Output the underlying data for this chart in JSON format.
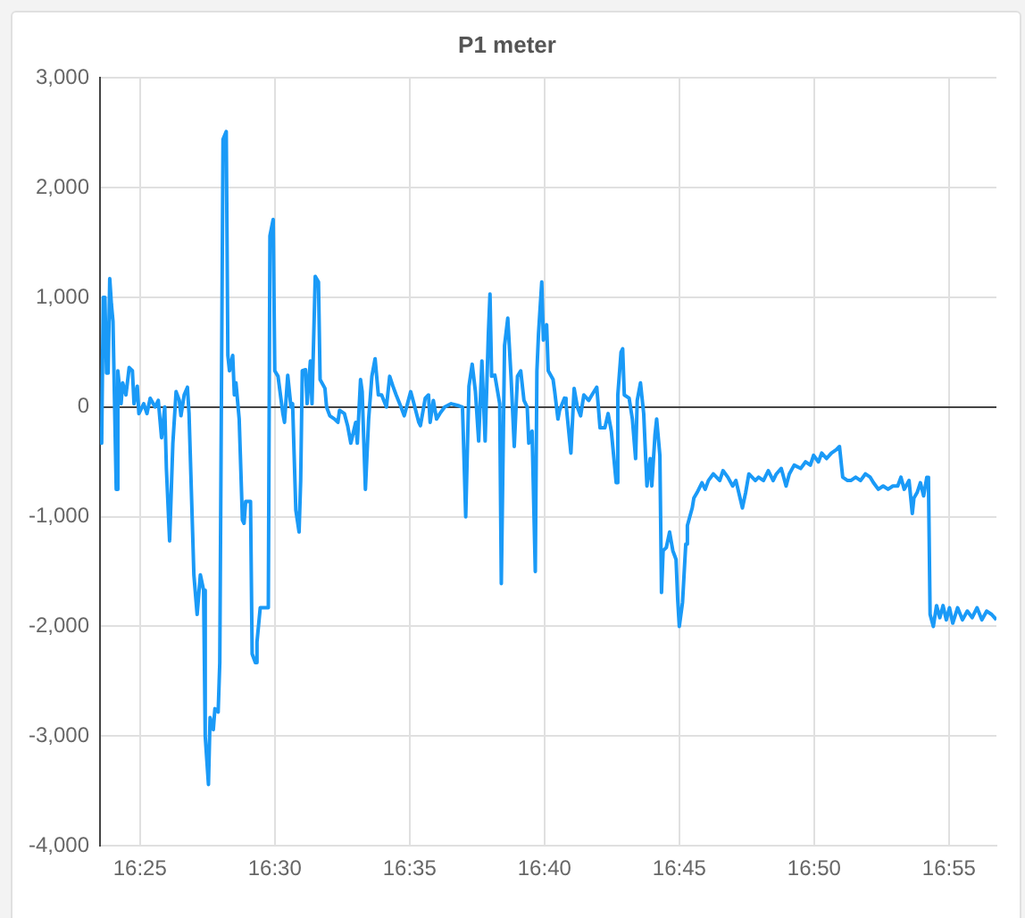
{
  "chart_data": {
    "type": "line",
    "title": "P1 meter",
    "x": [
      16.392,
      16.393,
      16.394,
      16.395,
      16.396,
      16.397,
      16.398,
      16.399,
      16.4,
      16.402,
      16.403,
      16.405,
      16.406,
      16.408,
      16.41,
      16.412,
      16.413,
      16.415,
      16.416,
      16.419,
      16.421,
      16.423,
      16.426,
      16.428,
      16.43,
      16.432,
      16.433,
      16.435,
      16.437,
      16.439,
      16.441,
      16.442,
      16.444,
      16.446,
      16.447,
      16.45,
      16.452,
      16.454,
      16.456,
      16.457,
      16.459,
      16.46,
      16.462,
      16.463,
      16.465,
      16.466,
      16.468,
      16.47,
      16.471,
      16.472,
      16.474,
      16.475,
      16.476,
      16.478,
      16.48,
      16.481,
      16.482,
      16.485,
      16.486,
      16.488,
      16.489,
      16.491,
      16.494,
      16.496,
      16.497,
      16.499,
      16.5,
      16.502,
      16.505,
      16.506,
      16.508,
      16.51,
      16.511,
      16.513,
      16.515,
      16.516,
      16.517,
      16.519,
      16.52,
      16.522,
      16.523,
      16.525,
      16.527,
      16.528,
      16.531,
      16.532,
      16.534,
      16.537,
      16.539,
      16.54,
      16.543,
      16.545,
      16.547,
      16.55,
      16.551,
      16.553,
      16.554,
      16.556,
      16.558,
      16.56,
      16.562,
      16.564,
      16.566,
      16.569,
      16.571,
      16.573,
      16.575,
      16.578,
      16.58,
      16.582,
      16.584,
      16.586,
      16.589,
      16.59,
      16.593,
      16.595,
      16.596,
      16.598,
      16.6,
      16.602,
      16.605,
      16.609,
      16.614,
      16.616,
      16.618,
      16.62,
      16.622,
      16.624,
      16.626,
      16.628,
      16.63,
      16.632,
      16.633,
      16.634,
      16.636,
      16.639,
      16.64,
      16.642,
      16.644,
      16.646,
      16.648,
      16.65,
      16.652,
      16.654,
      16.656,
      16.657,
      16.659,
      16.661,
      16.662,
      16.663,
      16.665,
      16.666,
      16.668,
      16.669,
      16.672,
      16.673,
      16.675,
      16.676,
      16.679,
      16.68,
      16.683,
      16.685,
      16.687,
      16.689,
      16.691,
      16.694,
      16.696,
      16.699,
      16.701,
      16.704,
      16.706,
      16.708,
      16.711,
      16.712,
      16.714,
      16.715,
      16.716,
      16.719,
      16.721,
      16.723,
      16.724,
      16.726,
      16.728,
      16.73,
      16.732,
      16.733,
      16.735,
      16.736,
      16.738,
      16.739,
      16.74,
      16.742,
      16.744,
      16.746,
      16.748,
      16.749,
      16.75,
      16.752,
      16.754,
      16.755,
      16.758,
      16.759,
      16.761,
      16.764,
      16.766,
      16.768,
      16.771,
      16.775,
      16.777,
      16.78,
      16.783,
      16.785,
      16.789,
      16.791,
      16.793,
      16.797,
      16.799,
      16.802,
      16.805,
      16.808,
      16.81,
      16.813,
      16.816,
      16.818,
      16.821,
      16.825,
      16.828,
      16.831,
      16.833,
      16.836,
      16.838,
      16.841,
      16.844,
      16.847,
      16.849,
      16.851,
      16.854,
      16.856,
      16.859,
      16.862,
      16.865,
      16.868,
      16.87,
      16.873,
      16.876,
      16.879,
      16.882,
      16.885,
      16.887,
      16.889,
      16.892,
      16.894,
      16.895,
      16.897,
      16.899,
      16.901,
      16.903,
      16.904,
      16.905,
      16.907,
      16.909,
      16.911,
      16.913,
      16.915,
      16.917,
      16.919,
      16.922,
      16.925,
      16.928,
      16.931,
      16.934,
      16.937,
      16.94,
      16.943,
      16.946
    ],
    "series": [
      {
        "color": "#1a9af7",
        "values": [
          -190,
          -330,
          1000,
          1000,
          310,
          310,
          1170,
          940,
          780,
          -750,
          330,
          30,
          220,
          110,
          360,
          330,
          30,
          190,
          -60,
          30,
          -60,
          80,
          0,
          60,
          -280,
          0,
          -560,
          -1220,
          -330,
          140,
          60,
          -80,
          110,
          180,
          -60,
          -1530,
          -1890,
          -1530,
          -1670,
          -3000,
          -3440,
          -2830,
          -2940,
          -2750,
          -2780,
          -2330,
          2440,
          2510,
          470,
          330,
          470,
          110,
          220,
          -110,
          -1030,
          -1060,
          -860,
          -860,
          -2250,
          -2330,
          -2140,
          -1830,
          -1830,
          -1830,
          1560,
          1710,
          330,
          280,
          -60,
          -140,
          290,
          0,
          30,
          -940,
          -1140,
          -670,
          330,
          340,
          30,
          420,
          30,
          1190,
          1140,
          250,
          170,
          0,
          -80,
          -110,
          -140,
          -30,
          -60,
          -170,
          -330,
          -140,
          -330,
          250,
          140,
          -750,
          -110,
          280,
          440,
          110,
          110,
          0,
          280,
          190,
          110,
          0,
          -80,
          30,
          140,
          30,
          -140,
          -170,
          80,
          110,
          -140,
          60,
          -110,
          -60,
          0,
          30,
          10,
          0,
          -1000,
          190,
          390,
          140,
          -310,
          420,
          -310,
          670,
          1030,
          280,
          290,
          30,
          -1610,
          560,
          810,
          280,
          -360,
          280,
          330,
          60,
          0,
          -330,
          -220,
          -1500,
          330,
          670,
          1140,
          610,
          750,
          330,
          250,
          140,
          -110,
          -30,
          80,
          30,
          -420,
          170,
          0,
          -80,
          110,
          60,
          110,
          180,
          -190,
          -190,
          -60,
          -220,
          -690,
          110,
          500,
          530,
          110,
          80,
          -110,
          -470,
          60,
          220,
          -60,
          -720,
          -470,
          -720,
          -250,
          -110,
          -440,
          -1690,
          -1310,
          -1280,
          -1140,
          -1310,
          -1390,
          -1750,
          -2000,
          -1780,
          -1250,
          -1080,
          -920,
          -830,
          -780,
          -690,
          -750,
          -670,
          -610,
          -670,
          -580,
          -640,
          -720,
          -670,
          -920,
          -780,
          -610,
          -670,
          -640,
          -670,
          -580,
          -670,
          -610,
          -560,
          -720,
          -610,
          -530,
          -560,
          -500,
          -530,
          -440,
          -500,
          -420,
          -470,
          -420,
          -390,
          -360,
          -640,
          -670,
          -670,
          -640,
          -670,
          -610,
          -640,
          -690,
          -750,
          -720,
          -750,
          -720,
          -720,
          -640,
          -750,
          -670,
          -970,
          -830,
          -780,
          -690,
          -810,
          -640,
          -670,
          -1890,
          -2000,
          -1810,
          -1920,
          -1810,
          -1940,
          -1830,
          -1970,
          -1830,
          -1940,
          -1860,
          -1920,
          -1830,
          -1940,
          -1860,
          -1890,
          -1940
        ]
      }
    ],
    "xlim": [
      16.392,
      16.946
    ],
    "xticks": [
      {
        "value": 16.416667,
        "label": "16:25"
      },
      {
        "value": 16.5,
        "label": "16:30"
      },
      {
        "value": 16.583333,
        "label": "16:35"
      },
      {
        "value": 16.666667,
        "label": "16:40"
      },
      {
        "value": 16.75,
        "label": "16:45"
      },
      {
        "value": 16.833333,
        "label": "16:50"
      },
      {
        "value": 16.916667,
        "label": "16:55"
      }
    ],
    "ylim": [
      -4000,
      3000
    ],
    "yticks": [
      {
        "value": -4000,
        "label": "-4,000"
      },
      {
        "value": -3000,
        "label": "-3,000"
      },
      {
        "value": -2000,
        "label": "-2,000"
      },
      {
        "value": -1000,
        "label": "-1,000"
      },
      {
        "value": 0,
        "label": "0"
      },
      {
        "value": 1000,
        "label": "1,000"
      },
      {
        "value": 2000,
        "label": "2,000"
      },
      {
        "value": 3000,
        "label": "3,000"
      }
    ],
    "grid": true,
    "marker": "none",
    "line_style": "solid",
    "legend": false
  }
}
